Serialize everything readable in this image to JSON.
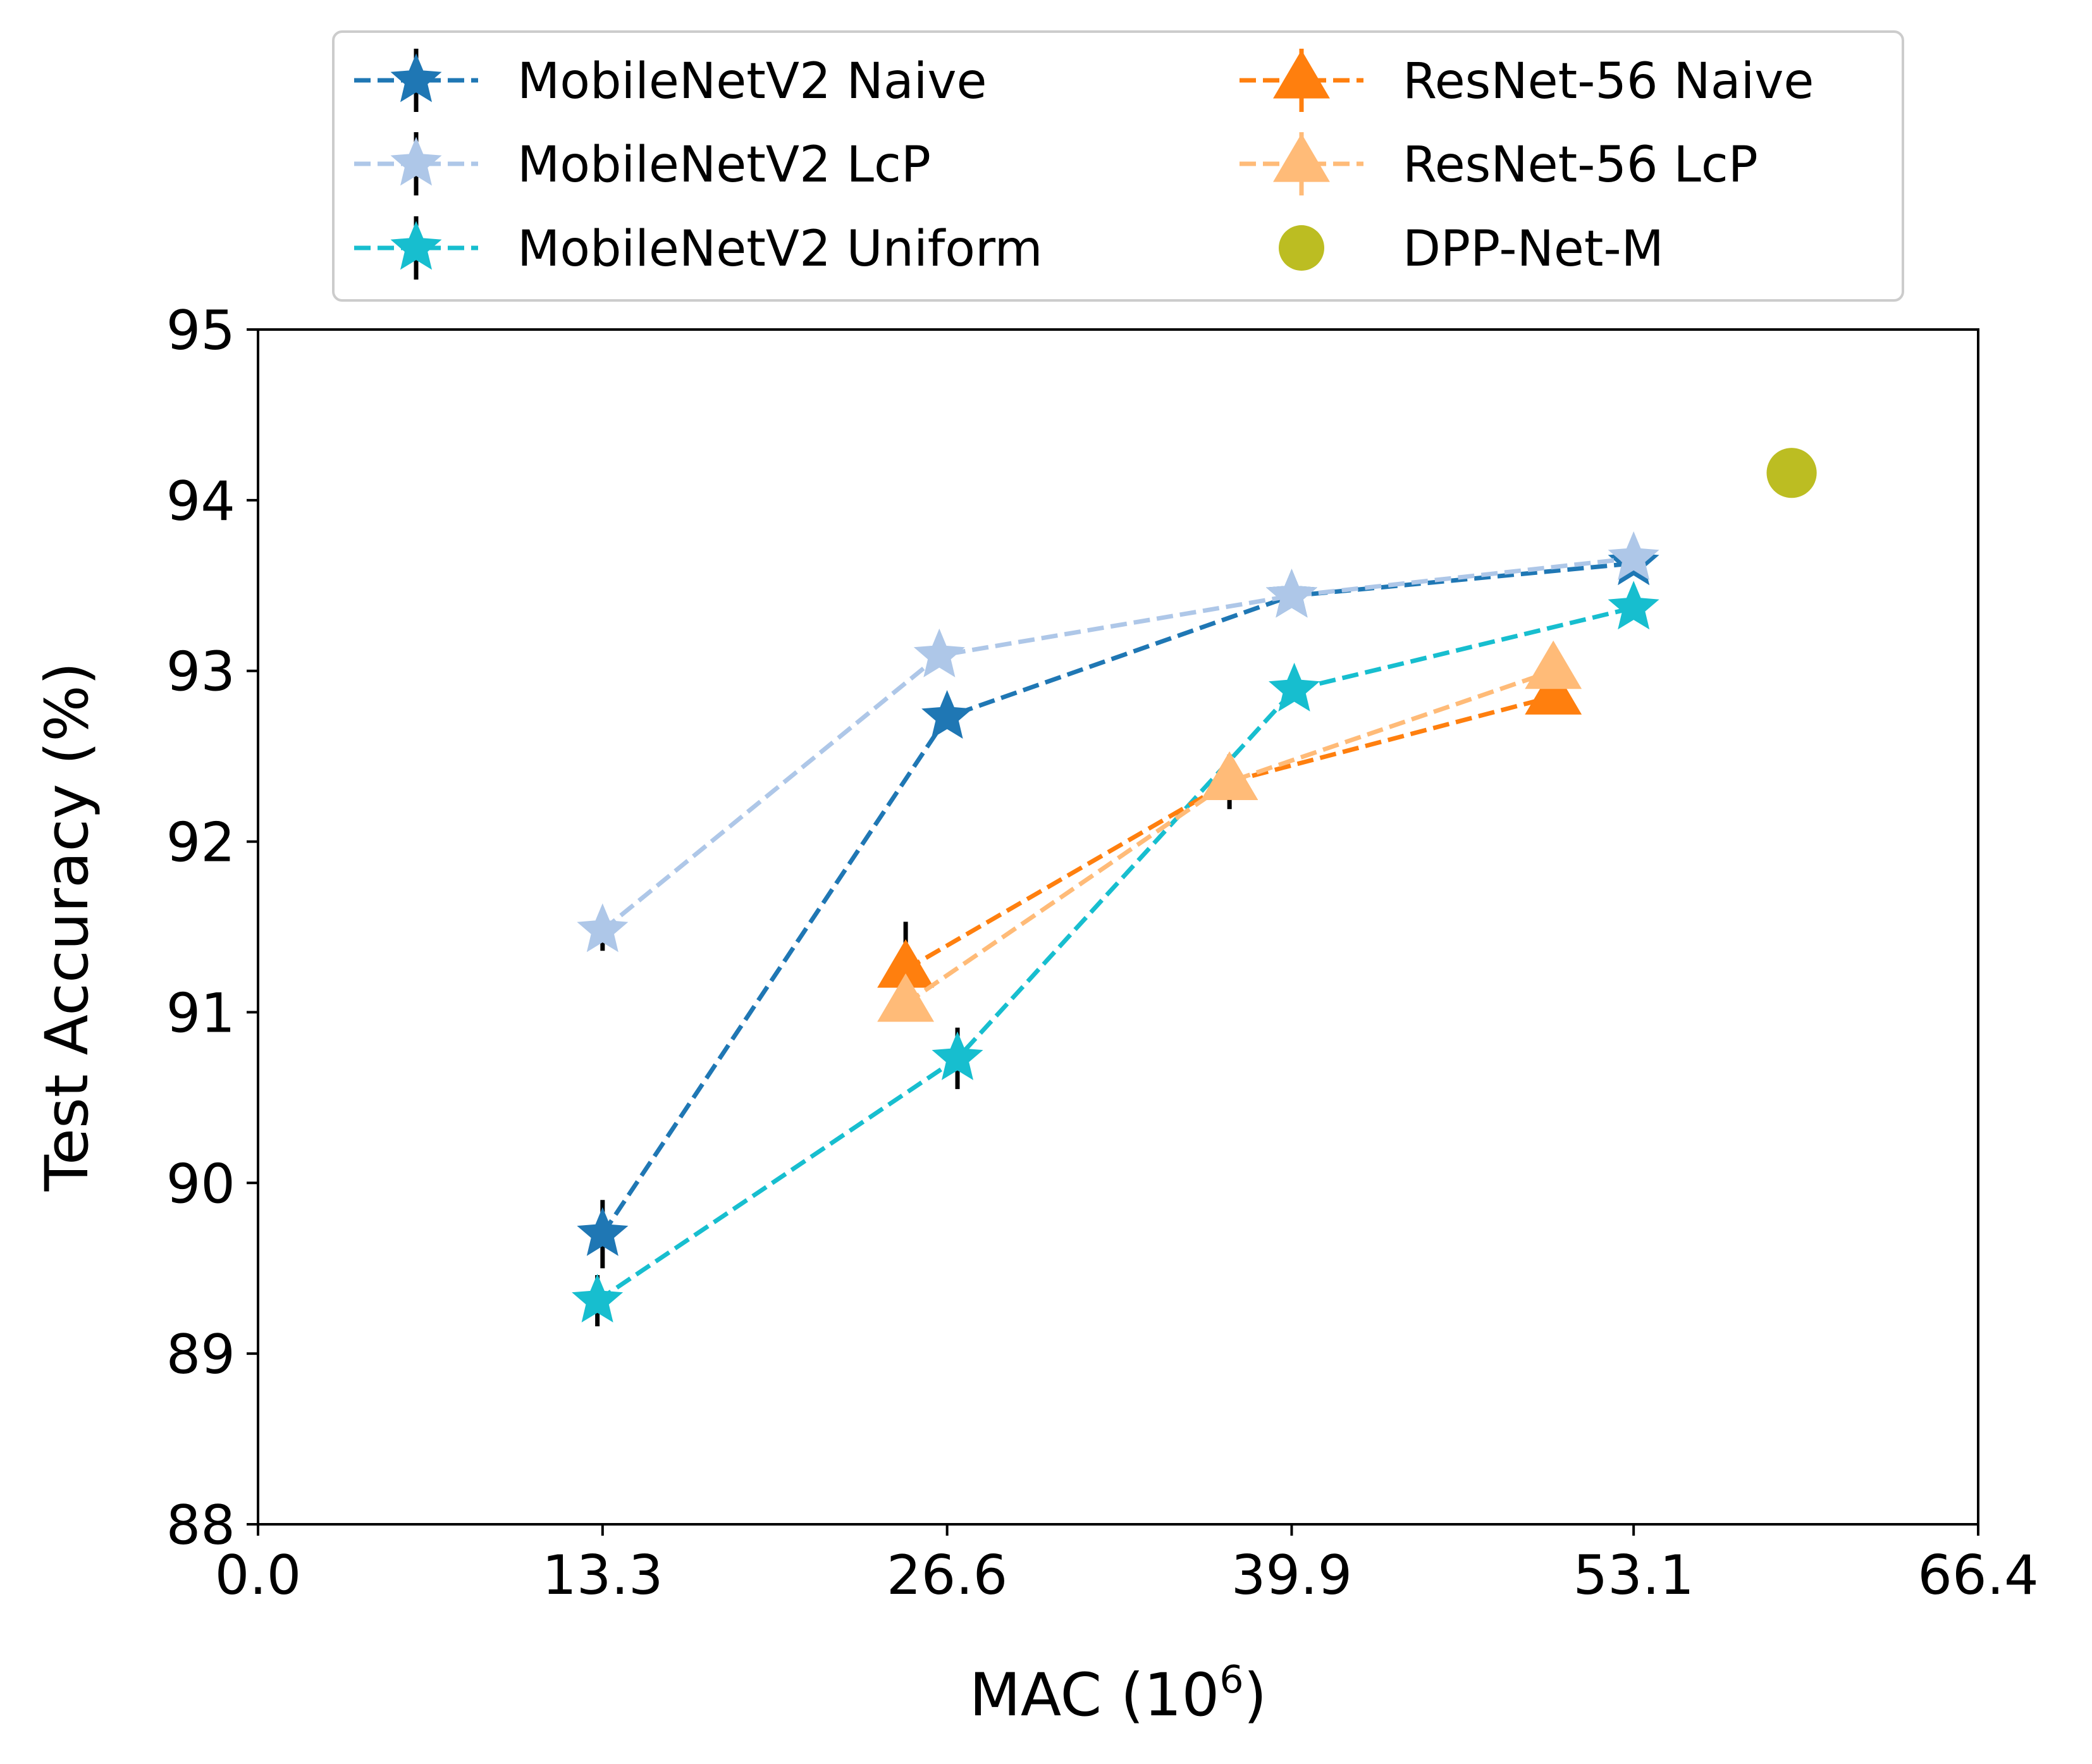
{
  "chart_data": {
    "type": "line",
    "xlabel": "MAC (10",
    "xlabel_sup": "6",
    "xlabel_close": ")",
    "ylabel": "Test Accuracy (%)",
    "xlim": [
      0.0,
      66.4
    ],
    "ylim": [
      88,
      95
    ],
    "xticks": [
      "0.0",
      "13.3",
      "26.6",
      "39.9",
      "53.1",
      "66.4"
    ],
    "xtick_values": [
      0.0,
      13.3,
      26.6,
      39.9,
      53.1,
      66.4
    ],
    "yticks": [
      "88",
      "89",
      "90",
      "91",
      "92",
      "93",
      "94",
      "95"
    ],
    "ytick_values": [
      88,
      89,
      90,
      91,
      92,
      93,
      94,
      95
    ],
    "grid": false,
    "legend_position": "top (outside, above axes)",
    "series": [
      {
        "name": "MobileNetV2 Naive",
        "color": "#1f77b4",
        "marker": "star",
        "linestyle": "dashed",
        "x": [
          13.3,
          26.6,
          39.9,
          53.1
        ],
        "y": [
          89.7,
          92.73,
          93.44,
          93.63
        ],
        "err": [
          0.2,
          0.05,
          0.04,
          0.05
        ]
      },
      {
        "name": "MobileNetV2 LcP",
        "color": "#aec7e8",
        "marker": "star",
        "linestyle": "dashed",
        "x": [
          13.3,
          26.3,
          39.9,
          53.1
        ],
        "y": [
          91.48,
          93.09,
          93.44,
          93.66
        ],
        "err": [
          0.12,
          0.05,
          0.04,
          0.05
        ]
      },
      {
        "name": "MobileNetV2 Uniform",
        "color": "#17becf",
        "marker": "star",
        "linestyle": "dashed",
        "x": [
          13.1,
          27.0,
          40.0,
          53.1
        ],
        "y": [
          89.31,
          90.73,
          92.89,
          93.37
        ],
        "err": [
          0.15,
          0.18,
          0.05,
          0.04
        ]
      },
      {
        "name": "ResNet-56 Naive",
        "color": "#ff7f0e",
        "marker": "triangle",
        "linestyle": "dashed",
        "x": [
          25.0,
          37.5,
          50.0
        ],
        "y": [
          91.25,
          92.35,
          92.85
        ],
        "err": [
          0.28,
          0.16,
          0.06
        ]
      },
      {
        "name": "ResNet-56 LcP",
        "color": "#ffbb78",
        "marker": "triangle",
        "linestyle": "dashed",
        "x": [
          25.0,
          37.5,
          50.0
        ],
        "y": [
          91.05,
          92.35,
          93.0
        ],
        "err": [
          0.05,
          0.05,
          0.05
        ]
      },
      {
        "name": "DPP-Net-M",
        "color": "#bcbd22",
        "marker": "circle",
        "linestyle": "none",
        "x": [
          59.2
        ],
        "y": [
          94.16
        ],
        "err": [
          0
        ]
      }
    ]
  }
}
